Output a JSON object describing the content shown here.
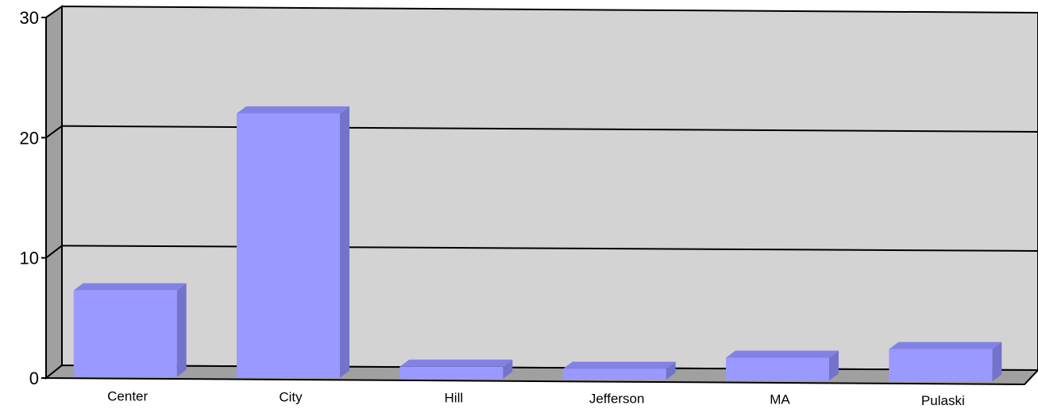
{
  "chart_data": {
    "type": "bar",
    "three_d": true,
    "title": "",
    "xlabel": "",
    "ylabel": "",
    "categories": [
      "Center",
      "City",
      "Hill",
      "Jefferson",
      "MA",
      "Pulaski"
    ],
    "values": [
      7.2,
      22,
      1.0,
      0.9,
      1.9,
      2.7
    ],
    "ylim": [
      0,
      30
    ],
    "yticks": [
      0,
      10,
      20,
      30
    ],
    "grid": true,
    "legend": "none"
  },
  "colors": {
    "bar_front": "#9999ff",
    "bar_top": "#8282e6",
    "bar_side": "#7373cc",
    "back_wall": "#d3d3d3",
    "side_wall": "#a0a0a0",
    "floor": "#a0a0a0",
    "grid": "#000000"
  }
}
